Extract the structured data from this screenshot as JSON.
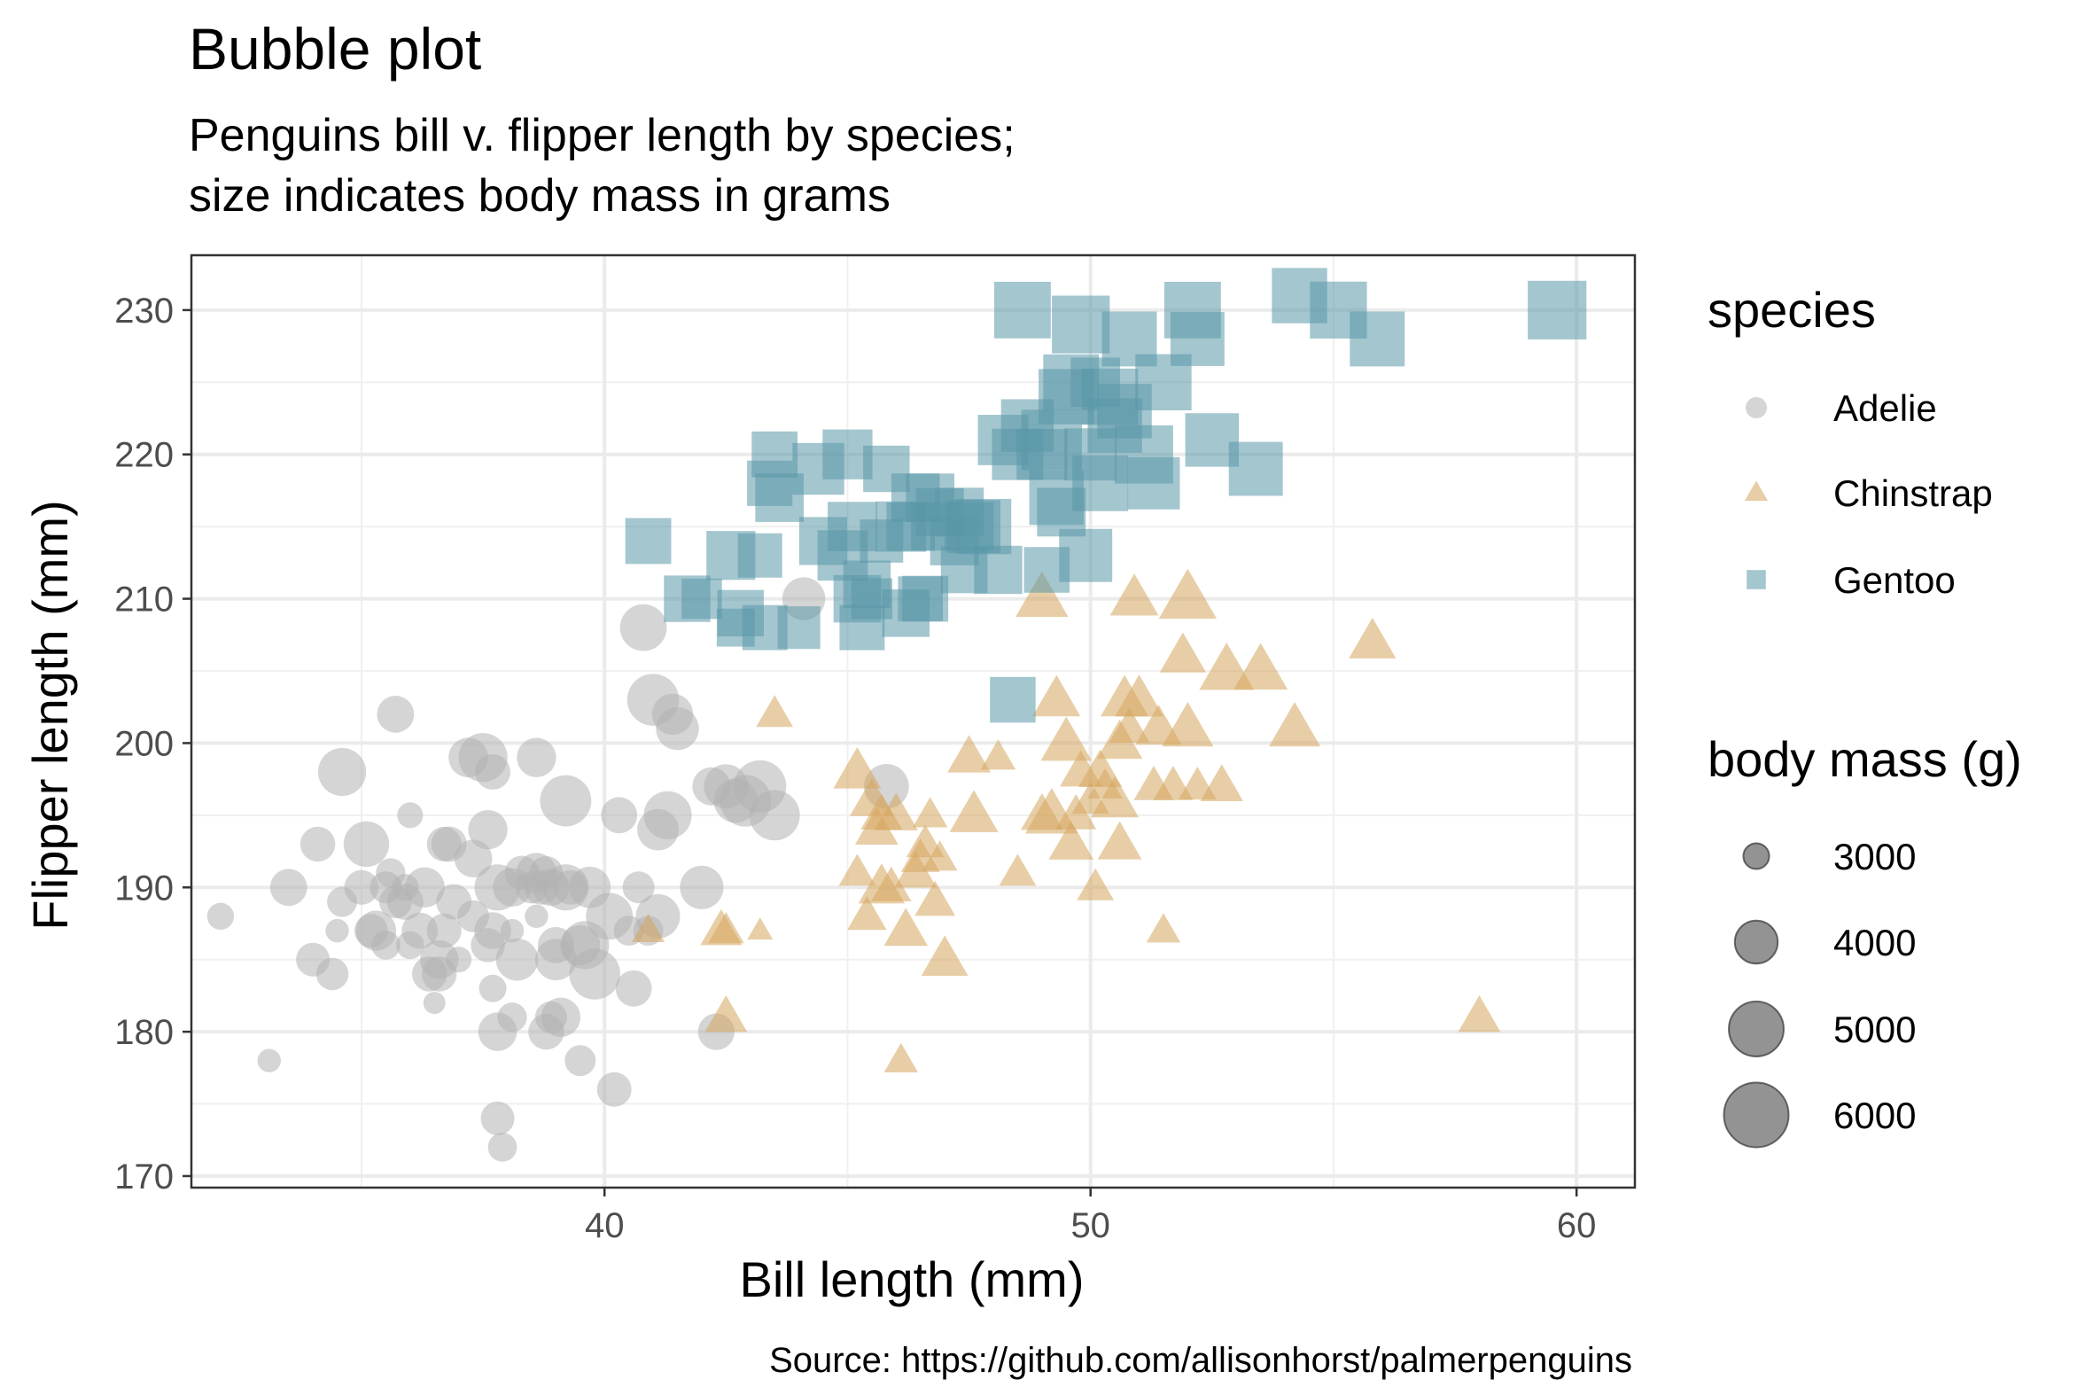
{
  "chart_data": {
    "type": "scatter",
    "title": "Bubble plot",
    "subtitle_lines": [
      "Penguins bill v. flipper length by species;",
      "size indicates body mass in grams"
    ],
    "xlabel": "Bill length (mm)",
    "ylabel": "Flipper length (mm)",
    "caption": "Source: https://github.com/allisonhorst/palmerpenguins",
    "xlim": [
      31.5,
      61.2
    ],
    "ylim": [
      169.2,
      233.8
    ],
    "x_ticks": [
      40,
      50,
      60
    ],
    "y_ticks": [
      170,
      180,
      190,
      200,
      210,
      220,
      230
    ],
    "grid": true,
    "legend_placement": "right",
    "legend": {
      "color_title": "species",
      "size_title": "body mass (g)",
      "size_breaks": [
        3000,
        4000,
        5000,
        6000
      ]
    },
    "series": [
      {
        "name": "Adelie",
        "shape": "circle",
        "color": "#b3b3b3",
        "points": [
          [
            32.1,
            188,
            3050
          ],
          [
            33.1,
            178,
            2900
          ],
          [
            33.5,
            190,
            3600
          ],
          [
            34.0,
            185,
            3400
          ],
          [
            34.1,
            193,
            3475
          ],
          [
            34.4,
            184,
            3325
          ],
          [
            34.5,
            187,
            2900
          ],
          [
            34.6,
            189,
            3200
          ],
          [
            34.6,
            198,
            4400
          ],
          [
            35.0,
            190,
            3450
          ],
          [
            35.1,
            193,
            4200
          ],
          [
            35.2,
            187,
            3400
          ],
          [
            35.3,
            187,
            3800
          ],
          [
            35.5,
            186,
            3150
          ],
          [
            35.5,
            190,
            3300
          ],
          [
            35.6,
            191,
            3175
          ],
          [
            35.7,
            189,
            3350
          ],
          [
            35.7,
            202,
            3600
          ],
          [
            35.9,
            190,
            3050
          ],
          [
            35.9,
            189,
            3550
          ],
          [
            36.0,
            186,
            3100
          ],
          [
            36.0,
            195,
            3000
          ],
          [
            36.2,
            187,
            3550
          ],
          [
            36.3,
            190,
            3800
          ],
          [
            36.4,
            184,
            3475
          ],
          [
            36.5,
            182,
            2850
          ],
          [
            36.6,
            184,
            3475
          ],
          [
            36.6,
            185,
            3700
          ],
          [
            36.7,
            187,
            3450
          ],
          [
            36.7,
            193,
            3450
          ],
          [
            36.8,
            193,
            3500
          ],
          [
            36.9,
            189,
            3500
          ],
          [
            37.0,
            185,
            3000
          ],
          [
            37.2,
            199,
            3775
          ],
          [
            37.3,
            188,
            3300
          ],
          [
            37.3,
            192,
            3650
          ],
          [
            37.5,
            199,
            4475
          ],
          [
            37.6,
            186,
            3425
          ],
          [
            37.6,
            194,
            3750
          ],
          [
            37.7,
            183,
            3075
          ],
          [
            37.7,
            187,
            3600
          ],
          [
            37.7,
            198,
            3500
          ],
          [
            37.8,
            174,
            3400
          ],
          [
            37.8,
            190,
            4250
          ],
          [
            37.8,
            180,
            3700
          ],
          [
            37.9,
            172,
            3150
          ],
          [
            38.1,
            181,
            3175
          ],
          [
            38.1,
            187,
            2900
          ],
          [
            38.1,
            190,
            3700
          ],
          [
            38.2,
            185,
            3950
          ],
          [
            38.3,
            191,
            3450
          ],
          [
            38.5,
            190,
            3325
          ],
          [
            38.6,
            188,
            2900
          ],
          [
            38.6,
            199,
            3750
          ],
          [
            38.6,
            191,
            3800
          ],
          [
            38.7,
            190,
            3450
          ],
          [
            38.8,
            191,
            3400
          ],
          [
            38.8,
            180,
            3525
          ],
          [
            38.9,
            181,
            3300
          ],
          [
            38.9,
            190,
            3600
          ],
          [
            39.0,
            185,
            3900
          ],
          [
            39.0,
            186,
            3550
          ],
          [
            39.1,
            181,
            3750
          ],
          [
            39.2,
            196,
            4675
          ],
          [
            39.2,
            190,
            4250
          ],
          [
            39.3,
            190,
            3450
          ],
          [
            39.5,
            186,
            3800
          ],
          [
            39.5,
            178,
            3250
          ],
          [
            39.6,
            186,
            4400
          ],
          [
            39.7,
            190,
            3900
          ],
          [
            39.8,
            184,
            4650
          ],
          [
            40.1,
            188,
            4300
          ],
          [
            40.2,
            176,
            3450
          ],
          [
            40.3,
            195,
            3550
          ],
          [
            40.5,
            187,
            3200
          ],
          [
            40.6,
            183,
            3550
          ],
          [
            40.7,
            190,
            3300
          ],
          [
            40.8,
            208,
            4300
          ],
          [
            40.9,
            187,
            3200
          ],
          [
            41.0,
            203,
            4725
          ],
          [
            41.1,
            188,
            4100
          ],
          [
            41.1,
            194,
            3900
          ],
          [
            41.3,
            195,
            4400
          ],
          [
            41.4,
            202,
            3875
          ],
          [
            41.5,
            201,
            4000
          ],
          [
            42.0,
            190,
            4050
          ],
          [
            42.2,
            197,
            3675
          ],
          [
            42.3,
            180,
            3575
          ],
          [
            42.5,
            197,
            4100
          ],
          [
            42.7,
            196,
            4075
          ],
          [
            42.9,
            196,
            4700
          ],
          [
            43.2,
            197,
            4775
          ],
          [
            43.5,
            195,
            4600
          ],
          [
            44.1,
            210,
            4000
          ],
          [
            45.8,
            197,
            4150
          ]
        ]
      },
      {
        "name": "Chinstrap",
        "shape": "triangle",
        "color": "#d5a55f",
        "points": [
          [
            40.9,
            187,
            3200
          ],
          [
            42.4,
            187,
            3650
          ],
          [
            42.5,
            187,
            3350
          ],
          [
            42.5,
            181,
            3700
          ],
          [
            43.2,
            187,
            2900
          ],
          [
            43.5,
            202,
            3400
          ],
          [
            45.2,
            198,
            4050
          ],
          [
            45.2,
            191,
            3400
          ],
          [
            45.4,
            188,
            3525
          ],
          [
            45.5,
            196,
            3800
          ],
          [
            45.6,
            194,
            3750
          ],
          [
            45.7,
            195,
            3650
          ],
          [
            45.7,
            190,
            3950
          ],
          [
            45.9,
            190,
            3575
          ],
          [
            46.0,
            195,
            3775
          ],
          [
            46.1,
            178,
            3250
          ],
          [
            46.2,
            187,
            3800
          ],
          [
            46.4,
            191,
            3700
          ],
          [
            46.5,
            192,
            3500
          ],
          [
            46.6,
            193,
            3450
          ],
          [
            46.7,
            195,
            3300
          ],
          [
            46.8,
            189,
            3600
          ],
          [
            46.9,
            192,
            3300
          ],
          [
            47.0,
            185,
            3975
          ],
          [
            47.5,
            199,
            3750
          ],
          [
            47.6,
            195,
            4100
          ],
          [
            48.1,
            199,
            3300
          ],
          [
            48.5,
            191,
            3400
          ],
          [
            49.0,
            195,
            3700
          ],
          [
            49.2,
            195,
            4400
          ],
          [
            49.3,
            203,
            4050
          ],
          [
            49.5,
            200,
            4275
          ],
          [
            49.6,
            193,
            3850
          ],
          [
            49.7,
            195,
            3600
          ],
          [
            49.8,
            198,
            3675
          ],
          [
            50.0,
            196,
            3425
          ],
          [
            50.1,
            190,
            3400
          ],
          [
            50.2,
            198,
            3775
          ],
          [
            50.3,
            197,
            3300
          ],
          [
            50.5,
            196,
            4050
          ],
          [
            50.6,
            193,
            3800
          ],
          [
            50.7,
            203,
            4050
          ],
          [
            50.8,
            201,
            3600
          ],
          [
            51.0,
            203,
            4100
          ],
          [
            51.3,
            197,
            3550
          ],
          [
            51.4,
            201,
            3950
          ],
          [
            51.5,
            187,
            3250
          ],
          [
            51.7,
            197,
            3550
          ],
          [
            52.0,
            210,
            4800
          ],
          [
            52.2,
            197,
            3450
          ],
          [
            52.7,
            197,
            3725
          ],
          [
            52.8,
            205,
            4550
          ],
          [
            53.5,
            205,
            4500
          ],
          [
            55.8,
            207,
            4000
          ],
          [
            58.0,
            181,
            3700
          ],
          [
            49.0,
            210,
            4400
          ],
          [
            50.9,
            210,
            4100
          ],
          [
            52.0,
            201,
            4300
          ],
          [
            54.2,
            201,
            4300
          ],
          [
            51.9,
            206,
            3950
          ],
          [
            50.6,
            200,
            3900
          ]
        ]
      },
      {
        "name": "Gentoo",
        "shape": "square",
        "color": "#5a97a8",
        "points": [
          [
            40.9,
            214,
            4650
          ],
          [
            41.7,
            210,
            4700
          ],
          [
            42.0,
            210,
            4150
          ],
          [
            42.6,
            213,
            4950
          ],
          [
            42.7,
            208,
            3950
          ],
          [
            42.8,
            209,
            4700
          ],
          [
            43.2,
            213,
            4500
          ],
          [
            43.3,
            208,
            4575
          ],
          [
            43.4,
            218,
            4600
          ],
          [
            43.5,
            220,
            4650
          ],
          [
            43.6,
            217,
            4900
          ],
          [
            44.0,
            208,
            4350
          ],
          [
            44.4,
            219,
            5250
          ],
          [
            44.5,
            214,
            4850
          ],
          [
            44.9,
            213,
            5100
          ],
          [
            45.0,
            220,
            5050
          ],
          [
            45.1,
            215,
            5000
          ],
          [
            45.2,
            210,
            4800
          ],
          [
            45.3,
            208,
            4575
          ],
          [
            45.4,
            211,
            4800
          ],
          [
            45.5,
            210,
            4200
          ],
          [
            45.7,
            214,
            4400
          ],
          [
            45.8,
            219,
            4700
          ],
          [
            46.1,
            215,
            5100
          ],
          [
            46.2,
            209,
            4800
          ],
          [
            46.3,
            215,
            4900
          ],
          [
            46.4,
            217,
            4900
          ],
          [
            46.5,
            210,
            4550
          ],
          [
            46.6,
            210,
            4650
          ],
          [
            46.7,
            217,
            4900
          ],
          [
            46.8,
            215,
            4850
          ],
          [
            46.9,
            216,
            4850
          ],
          [
            47.2,
            214,
            4925
          ],
          [
            47.3,
            216,
            4950
          ],
          [
            47.4,
            212,
            4725
          ],
          [
            47.5,
            215,
            4950
          ],
          [
            47.6,
            215,
            5400
          ],
          [
            47.8,
            215,
            5650
          ],
          [
            48.1,
            212,
            4875
          ],
          [
            48.2,
            221,
            5100
          ],
          [
            48.4,
            203,
            4625
          ],
          [
            48.5,
            220,
            5200
          ],
          [
            48.6,
            230,
            5800
          ],
          [
            48.7,
            222,
            5350
          ],
          [
            49.0,
            220,
            5150
          ],
          [
            49.1,
            212,
            4625
          ],
          [
            49.2,
            221,
            6300
          ],
          [
            49.3,
            217,
            5550
          ],
          [
            49.4,
            216,
            4925
          ],
          [
            49.5,
            224,
            5650
          ],
          [
            49.6,
            225,
            5700
          ],
          [
            49.8,
            229,
            5950
          ],
          [
            49.9,
            213,
            5400
          ],
          [
            50.0,
            220,
            5300
          ],
          [
            50.1,
            225,
            5000
          ],
          [
            50.2,
            218,
            5700
          ],
          [
            50.4,
            224,
            5750
          ],
          [
            50.5,
            222,
            5550
          ],
          [
            50.7,
            223,
            5550
          ],
          [
            50.8,
            228,
            5600
          ],
          [
            51.1,
            220,
            6000
          ],
          [
            51.3,
            218,
            5300
          ],
          [
            51.5,
            225,
            5750
          ],
          [
            52.1,
            230,
            5800
          ],
          [
            52.2,
            228,
            5500
          ],
          [
            52.5,
            221,
            5450
          ],
          [
            53.4,
            219,
            5500
          ],
          [
            54.3,
            231,
            5650
          ],
          [
            55.1,
            230,
            5850
          ],
          [
            55.9,
            228,
            5600
          ],
          [
            59.6,
            230,
            6050
          ]
        ]
      }
    ]
  },
  "colors": {
    "Adelie": "#b3b3b3",
    "Chinstrap": "#d5a55f",
    "Gentoo": "#5a97a8",
    "legend_size_fill": "#808080"
  }
}
